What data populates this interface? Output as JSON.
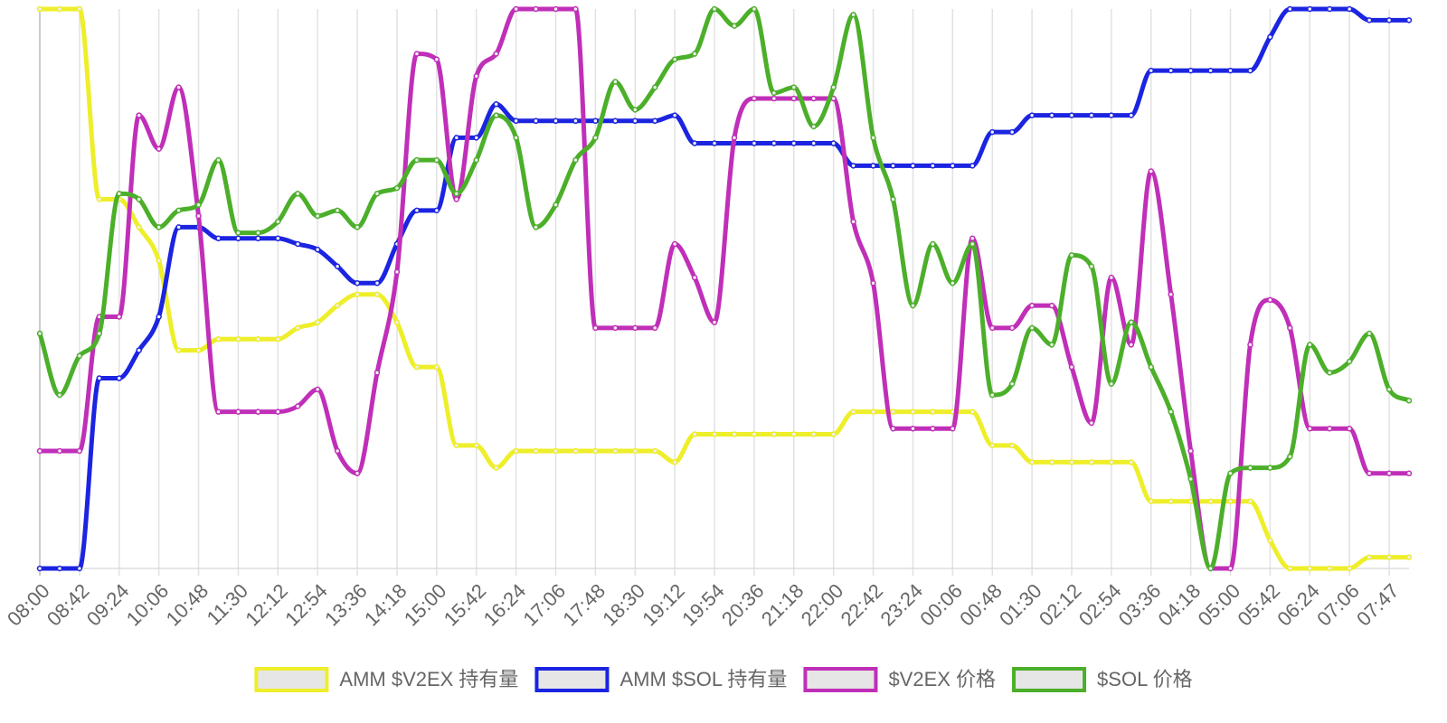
{
  "chart_data": {
    "type": "line",
    "categories": [
      "08:00",
      null,
      "08:42",
      null,
      "09:24",
      null,
      "10:06",
      null,
      "10:48",
      null,
      "11:30",
      null,
      "12:12",
      null,
      "12:54",
      null,
      "13:36",
      null,
      "14:18",
      null,
      "15:00",
      null,
      "15:42",
      null,
      "16:24",
      null,
      "17:06",
      null,
      "17:48",
      null,
      "18:30",
      null,
      "19:12",
      null,
      "19:54",
      null,
      "20:36",
      null,
      "21:18",
      null,
      "22:00",
      null,
      "22:42",
      null,
      "23:24",
      null,
      "00:06",
      null,
      "00:48",
      null,
      "01:30",
      null,
      "02:12",
      null,
      "02:54",
      null,
      "03:36",
      null,
      "04:18",
      null,
      "05:00",
      null,
      "05:42",
      null,
      "06:24",
      null,
      "07:06",
      null,
      "07:47",
      null
    ],
    "ylim": [
      0,
      100
    ],
    "grid": true,
    "legend": "bottom",
    "series": [
      {
        "name": "AMM $V2EX 持有量",
        "color": "#eeee2a",
        "values": [
          100,
          100,
          100,
          66,
          66,
          61,
          55,
          39,
          39,
          41,
          41,
          41,
          41,
          43,
          44,
          47,
          49,
          49,
          44,
          36,
          36,
          22,
          22,
          18,
          21,
          21,
          21,
          21,
          21,
          21,
          21,
          21,
          19,
          24,
          24,
          24,
          24,
          24,
          24,
          24,
          24,
          28,
          28,
          28,
          28,
          28,
          28,
          28,
          22,
          22,
          19,
          19,
          19,
          19,
          19,
          19,
          12,
          12,
          12,
          12,
          12,
          12,
          5,
          0,
          0,
          0,
          0,
          2,
          2,
          2
        ]
      },
      {
        "name": "AMM $SOL 持有量",
        "color": "#1b24e0",
        "values": [
          0,
          0,
          0,
          34,
          34,
          39,
          45,
          61,
          61,
          59,
          59,
          59,
          59,
          58,
          57,
          54,
          51,
          51,
          58,
          64,
          64,
          77,
          77,
          83,
          80,
          80,
          80,
          80,
          80,
          80,
          80,
          80,
          81,
          76,
          76,
          76,
          76,
          76,
          76,
          76,
          76,
          72,
          72,
          72,
          72,
          72,
          72,
          72,
          78,
          78,
          81,
          81,
          81,
          81,
          81,
          81,
          89,
          89,
          89,
          89,
          89,
          89,
          95,
          100,
          100,
          100,
          100,
          98,
          98,
          98
        ]
      },
      {
        "name": "$V2EX 价格",
        "color": "#c02fb8",
        "values": [
          21,
          21,
          21,
          45,
          45,
          81,
          75,
          86,
          63,
          28,
          28,
          28,
          28,
          29,
          32,
          21,
          17,
          35,
          53,
          92,
          91,
          66,
          88,
          92,
          100,
          100,
          100,
          100,
          43,
          43,
          43,
          43,
          58,
          52,
          44,
          77,
          84,
          84,
          84,
          84,
          84,
          62,
          51,
          25,
          25,
          25,
          25,
          59,
          43,
          43,
          47,
          47,
          36,
          26,
          52,
          40,
          71,
          49,
          21,
          0,
          0,
          40,
          48,
          43,
          25,
          25,
          25,
          17,
          17,
          17
        ]
      },
      {
        "name": "$SOL 价格",
        "color": "#4caf2a",
        "values": [
          42,
          31,
          38,
          42,
          67,
          66,
          61,
          64,
          65,
          73,
          60,
          60,
          62,
          67,
          63,
          64,
          61,
          67,
          68,
          73,
          73,
          67,
          73,
          81,
          77,
          61,
          65,
          73,
          77,
          87,
          82,
          86,
          91,
          92,
          100,
          97,
          100,
          85,
          86,
          79,
          86,
          99,
          77,
          66,
          47,
          58,
          51,
          58,
          31,
          33,
          43,
          40,
          56,
          54,
          33,
          44,
          36,
          28,
          16,
          0,
          17,
          18,
          18,
          20,
          40,
          35,
          37,
          42,
          32,
          30
        ]
      }
    ]
  }
}
